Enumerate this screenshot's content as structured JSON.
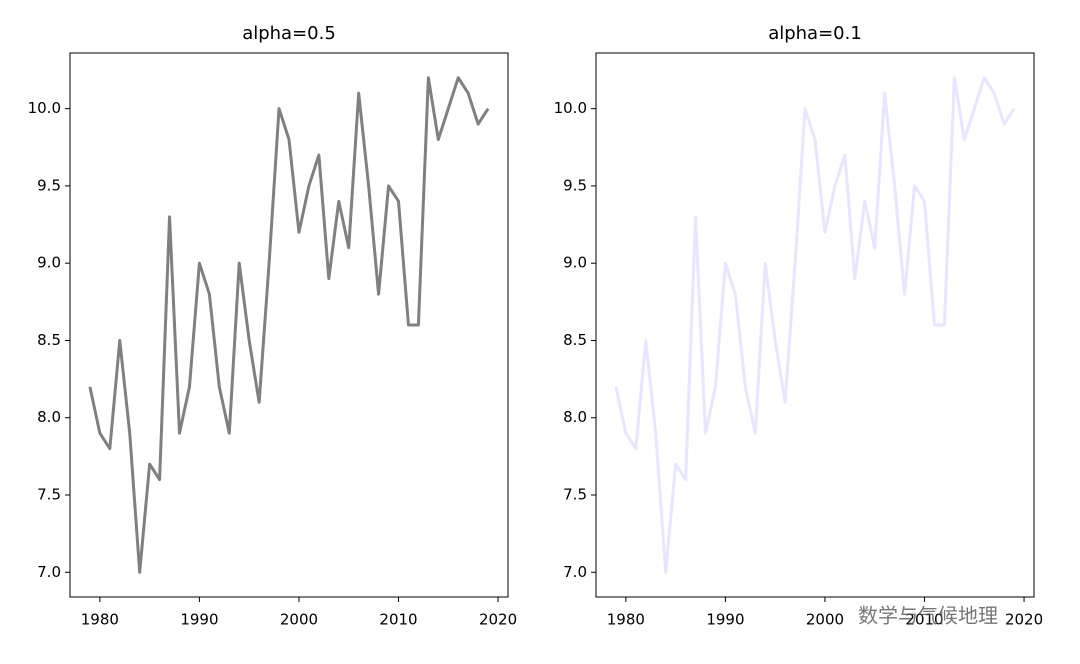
{
  "chart_data": [
    {
      "type": "line",
      "title": "alpha=0.5",
      "x": [
        1979,
        1980,
        1981,
        1982,
        1983,
        1984,
        1985,
        1986,
        1987,
        1988,
        1989,
        1990,
        1991,
        1992,
        1993,
        1994,
        1995,
        1996,
        1997,
        1998,
        1999,
        2000,
        2001,
        2002,
        2003,
        2004,
        2005,
        2006,
        2007,
        2008,
        2009,
        2010,
        2011,
        2012,
        2013,
        2014,
        2015,
        2016,
        2017,
        2018,
        2019
      ],
      "series": [
        {
          "color": "#808080",
          "values": [
            8.2,
            7.9,
            7.8,
            8.5,
            7.9,
            7.0,
            7.7,
            7.6,
            9.3,
            7.9,
            8.2,
            9.0,
            8.8,
            8.2,
            7.9,
            9.0,
            8.5,
            8.1,
            9.0,
            10.0,
            9.8,
            9.2,
            9.5,
            9.7,
            8.9,
            9.4,
            9.1,
            10.1,
            9.5,
            8.8,
            9.5,
            9.4,
            8.6,
            8.6,
            10.2,
            9.8,
            10.0,
            10.2,
            10.1,
            9.9,
            10.0
          ]
        }
      ],
      "xlim": [
        1977,
        2021
      ],
      "xticks": [
        1980,
        1990,
        2000,
        2010,
        2020
      ],
      "ylim": [
        6.84,
        10.36
      ],
      "yticks": [
        {
          "value": 7,
          "label": "7.0"
        },
        7.5,
        {
          "value": 8,
          "label": "8.0"
        },
        8.5,
        {
          "value": 9,
          "label": "9.0"
        },
        9.5,
        {
          "value": 10,
          "label": "10.0"
        }
      ]
    },
    {
      "type": "line",
      "title": "alpha=0.1",
      "x": [
        1979,
        1980,
        1981,
        1982,
        1983,
        1984,
        1985,
        1986,
        1987,
        1988,
        1989,
        1990,
        1991,
        1992,
        1993,
        1994,
        1995,
        1996,
        1997,
        1998,
        1999,
        2000,
        2001,
        2002,
        2003,
        2004,
        2005,
        2006,
        2007,
        2008,
        2009,
        2010,
        2011,
        2012,
        2013,
        2014,
        2015,
        2016,
        2017,
        2018,
        2019
      ],
      "series": [
        {
          "color": "#e6e6ff",
          "values": [
            8.2,
            7.9,
            7.8,
            8.5,
            7.9,
            7.0,
            7.7,
            7.6,
            9.3,
            7.9,
            8.2,
            9.0,
            8.8,
            8.2,
            7.9,
            9.0,
            8.5,
            8.1,
            9.0,
            10.0,
            9.8,
            9.2,
            9.5,
            9.7,
            8.9,
            9.4,
            9.1,
            10.1,
            9.5,
            8.8,
            9.5,
            9.4,
            8.6,
            8.6,
            10.2,
            9.8,
            10.0,
            10.2,
            10.1,
            9.9,
            10.0
          ]
        }
      ],
      "xlim": [
        1977,
        2021
      ],
      "xticks": [
        1980,
        1990,
        2000,
        2010,
        2020
      ],
      "ylim": [
        6.84,
        10.36
      ],
      "yticks": [
        {
          "value": 7,
          "label": "7.0"
        },
        7.5,
        {
          "value": 8,
          "label": "8.0"
        },
        8.5,
        {
          "value": 9,
          "label": "9.0"
        },
        9.5,
        {
          "value": 10,
          "label": "10.0"
        }
      ]
    }
  ],
  "watermark": "数学与气候地理"
}
